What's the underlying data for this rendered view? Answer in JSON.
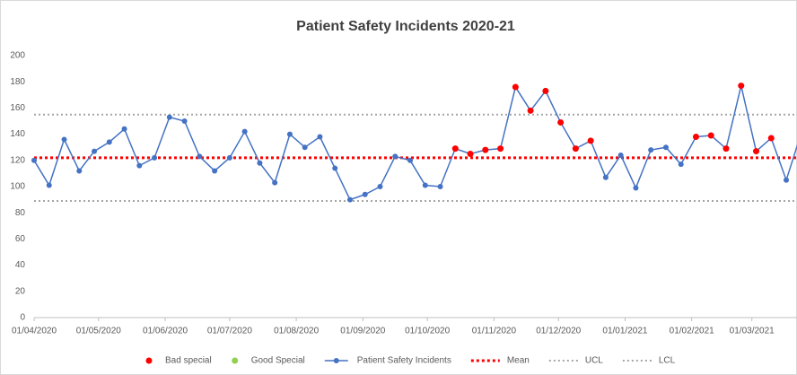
{
  "chart_data": {
    "type": "line",
    "title": "Patient Safety Incidents 2020-21",
    "x": [
      "01/04/2020",
      "08/04/2020",
      "15/04/2020",
      "22/04/2020",
      "29/04/2020",
      "06/05/2020",
      "13/05/2020",
      "20/05/2020",
      "27/05/2020",
      "03/06/2020",
      "10/06/2020",
      "17/06/2020",
      "24/06/2020",
      "01/07/2020",
      "08/07/2020",
      "15/07/2020",
      "22/07/2020",
      "29/07/2020",
      "05/08/2020",
      "12/08/2020",
      "19/08/2020",
      "26/08/2020",
      "02/09/2020",
      "09/09/2020",
      "16/09/2020",
      "23/09/2020",
      "30/09/2020",
      "07/10/2020",
      "14/10/2020",
      "21/10/2020",
      "28/10/2020",
      "04/11/2020",
      "11/11/2020",
      "18/11/2020",
      "25/11/2020",
      "02/12/2020",
      "09/12/2020",
      "16/12/2020",
      "23/12/2020",
      "30/12/2020",
      "06/01/2021",
      "13/01/2021",
      "20/01/2021",
      "27/01/2021",
      "03/02/2021",
      "10/02/2021",
      "17/02/2021",
      "24/02/2021",
      "03/03/2021",
      "10/03/2021",
      "17/03/2021",
      "24/03/2021"
    ],
    "series": [
      {
        "name": "Bad special",
        "color": "#ff0000",
        "style": "points",
        "values": [
          null,
          null,
          null,
          null,
          null,
          null,
          null,
          null,
          null,
          null,
          null,
          null,
          null,
          null,
          null,
          null,
          null,
          null,
          null,
          null,
          null,
          null,
          null,
          null,
          null,
          null,
          null,
          null,
          129,
          125,
          128,
          129,
          176,
          158,
          173,
          149,
          129,
          135,
          null,
          null,
          null,
          null,
          null,
          null,
          138,
          139,
          129,
          177,
          127,
          137,
          null,
          null
        ]
      },
      {
        "name": "Good Special",
        "color": "#92d050",
        "style": "points",
        "values": [
          null,
          null,
          null,
          null,
          null,
          null,
          null,
          null,
          null,
          null,
          null,
          null,
          null,
          null,
          null,
          null,
          null,
          null,
          null,
          null,
          null,
          null,
          null,
          null,
          null,
          null,
          null,
          null,
          null,
          null,
          null,
          null,
          null,
          null,
          null,
          null,
          null,
          null,
          null,
          null,
          null,
          null,
          null,
          null,
          null,
          null,
          null,
          null,
          null,
          null,
          null,
          null
        ]
      },
      {
        "name": "Patient Safety Incidents",
        "color": "#4472c4",
        "style": "line",
        "values": [
          120,
          101,
          136,
          112,
          127,
          134,
          144,
          116,
          122,
          153,
          150,
          123,
          112,
          122,
          142,
          118,
          103,
          140,
          130,
          138,
          114,
          90,
          94,
          100,
          123,
          120,
          101,
          100,
          129,
          125,
          128,
          129,
          176,
          158,
          173,
          149,
          129,
          135,
          107,
          124,
          99,
          128,
          130,
          117,
          138,
          139,
          129,
          177,
          127,
          137,
          105,
          141
        ]
      }
    ],
    "reference_lines": [
      {
        "name": "Mean",
        "color": "#ff0000",
        "value": 122
      },
      {
        "name": "UCL",
        "color": "#a6a6a6",
        "value": 155
      },
      {
        "name": "LCL",
        "color": "#a6a6a6",
        "value": 89
      }
    ],
    "xlim": [
      "01/04/2020",
      "22/03/2021"
    ],
    "xticks": [
      "01/04/2020",
      "01/05/2020",
      "01/06/2020",
      "01/07/2020",
      "01/08/2020",
      "01/09/2020",
      "01/10/2020",
      "01/11/2020",
      "01/12/2020",
      "01/01/2021",
      "01/02/2021",
      "01/03/2021"
    ],
    "ylim": [
      0,
      200
    ],
    "yticks": [
      0,
      20,
      40,
      60,
      80,
      100,
      120,
      140,
      160,
      180,
      200
    ],
    "grid": false
  }
}
